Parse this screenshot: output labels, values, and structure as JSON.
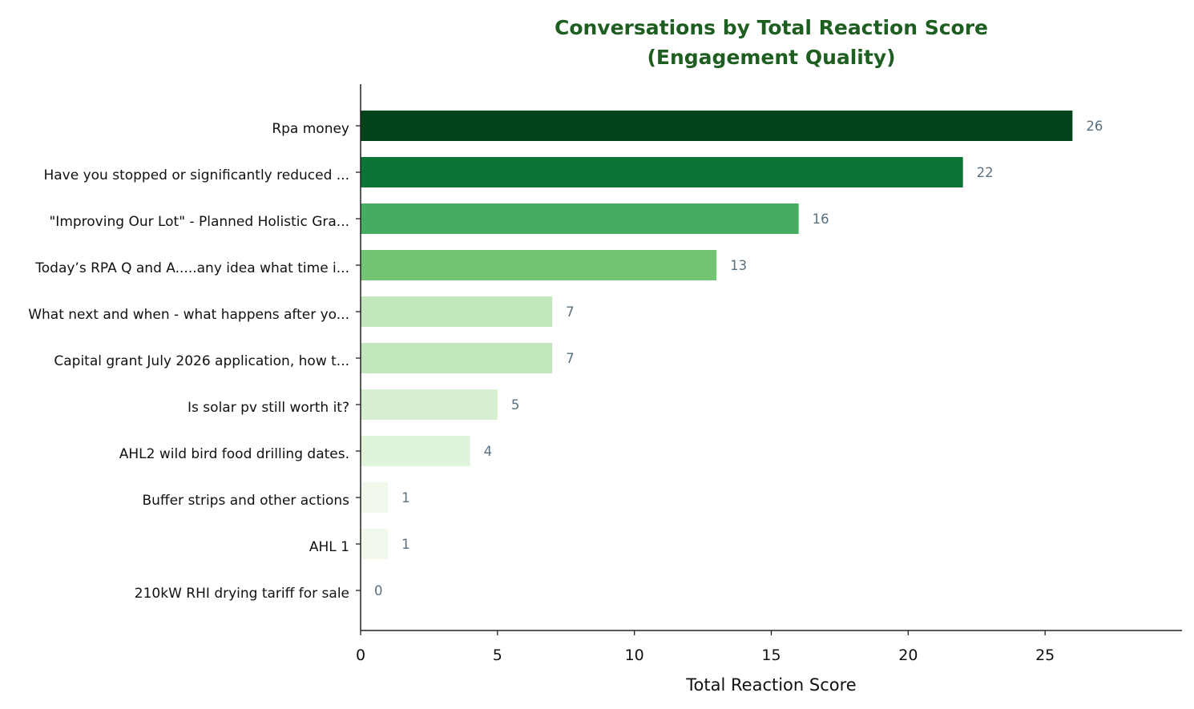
{
  "chart_data": {
    "type": "bar",
    "orientation": "horizontal",
    "title": "Conversations by Total Reaction Score",
    "subtitle": "(Engagement Quality)",
    "xlabel": "Total Reaction Score",
    "ylabel": "",
    "xlim": [
      0,
      30
    ],
    "xticks": [
      0,
      5,
      10,
      15,
      20,
      25
    ],
    "grid": false,
    "categories": [
      "Rpa money",
      "Have you stopped or significantly reduced ...",
      "\"Improving Our Lot\" - Planned Holistic Gra...",
      "Today’s RPA Q and A.....any idea what time i...",
      "What next and when - what happens after yo...",
      "Capital grant July 2026 application, how t...",
      "Is solar pv still worth it?",
      "AHL2 wild bird food drilling dates.",
      "Buffer strips and other actions",
      "AHL 1",
      "210kW RHI drying tariff for sale"
    ],
    "values": [
      26,
      22,
      16,
      13,
      7,
      7,
      5,
      4,
      1,
      1,
      0
    ],
    "bar_colors": [
      "#03441d",
      "#0a7535",
      "#45ad61",
      "#74c476",
      "#c3e7bc",
      "#c3e7bc",
      "#d7efd1",
      "#e0f3db",
      "#f0f9ec",
      "#f0f9ec",
      "#f7fcf5"
    ],
    "title_color": "#1e5e20",
    "value_label_color": "#5a7080"
  }
}
